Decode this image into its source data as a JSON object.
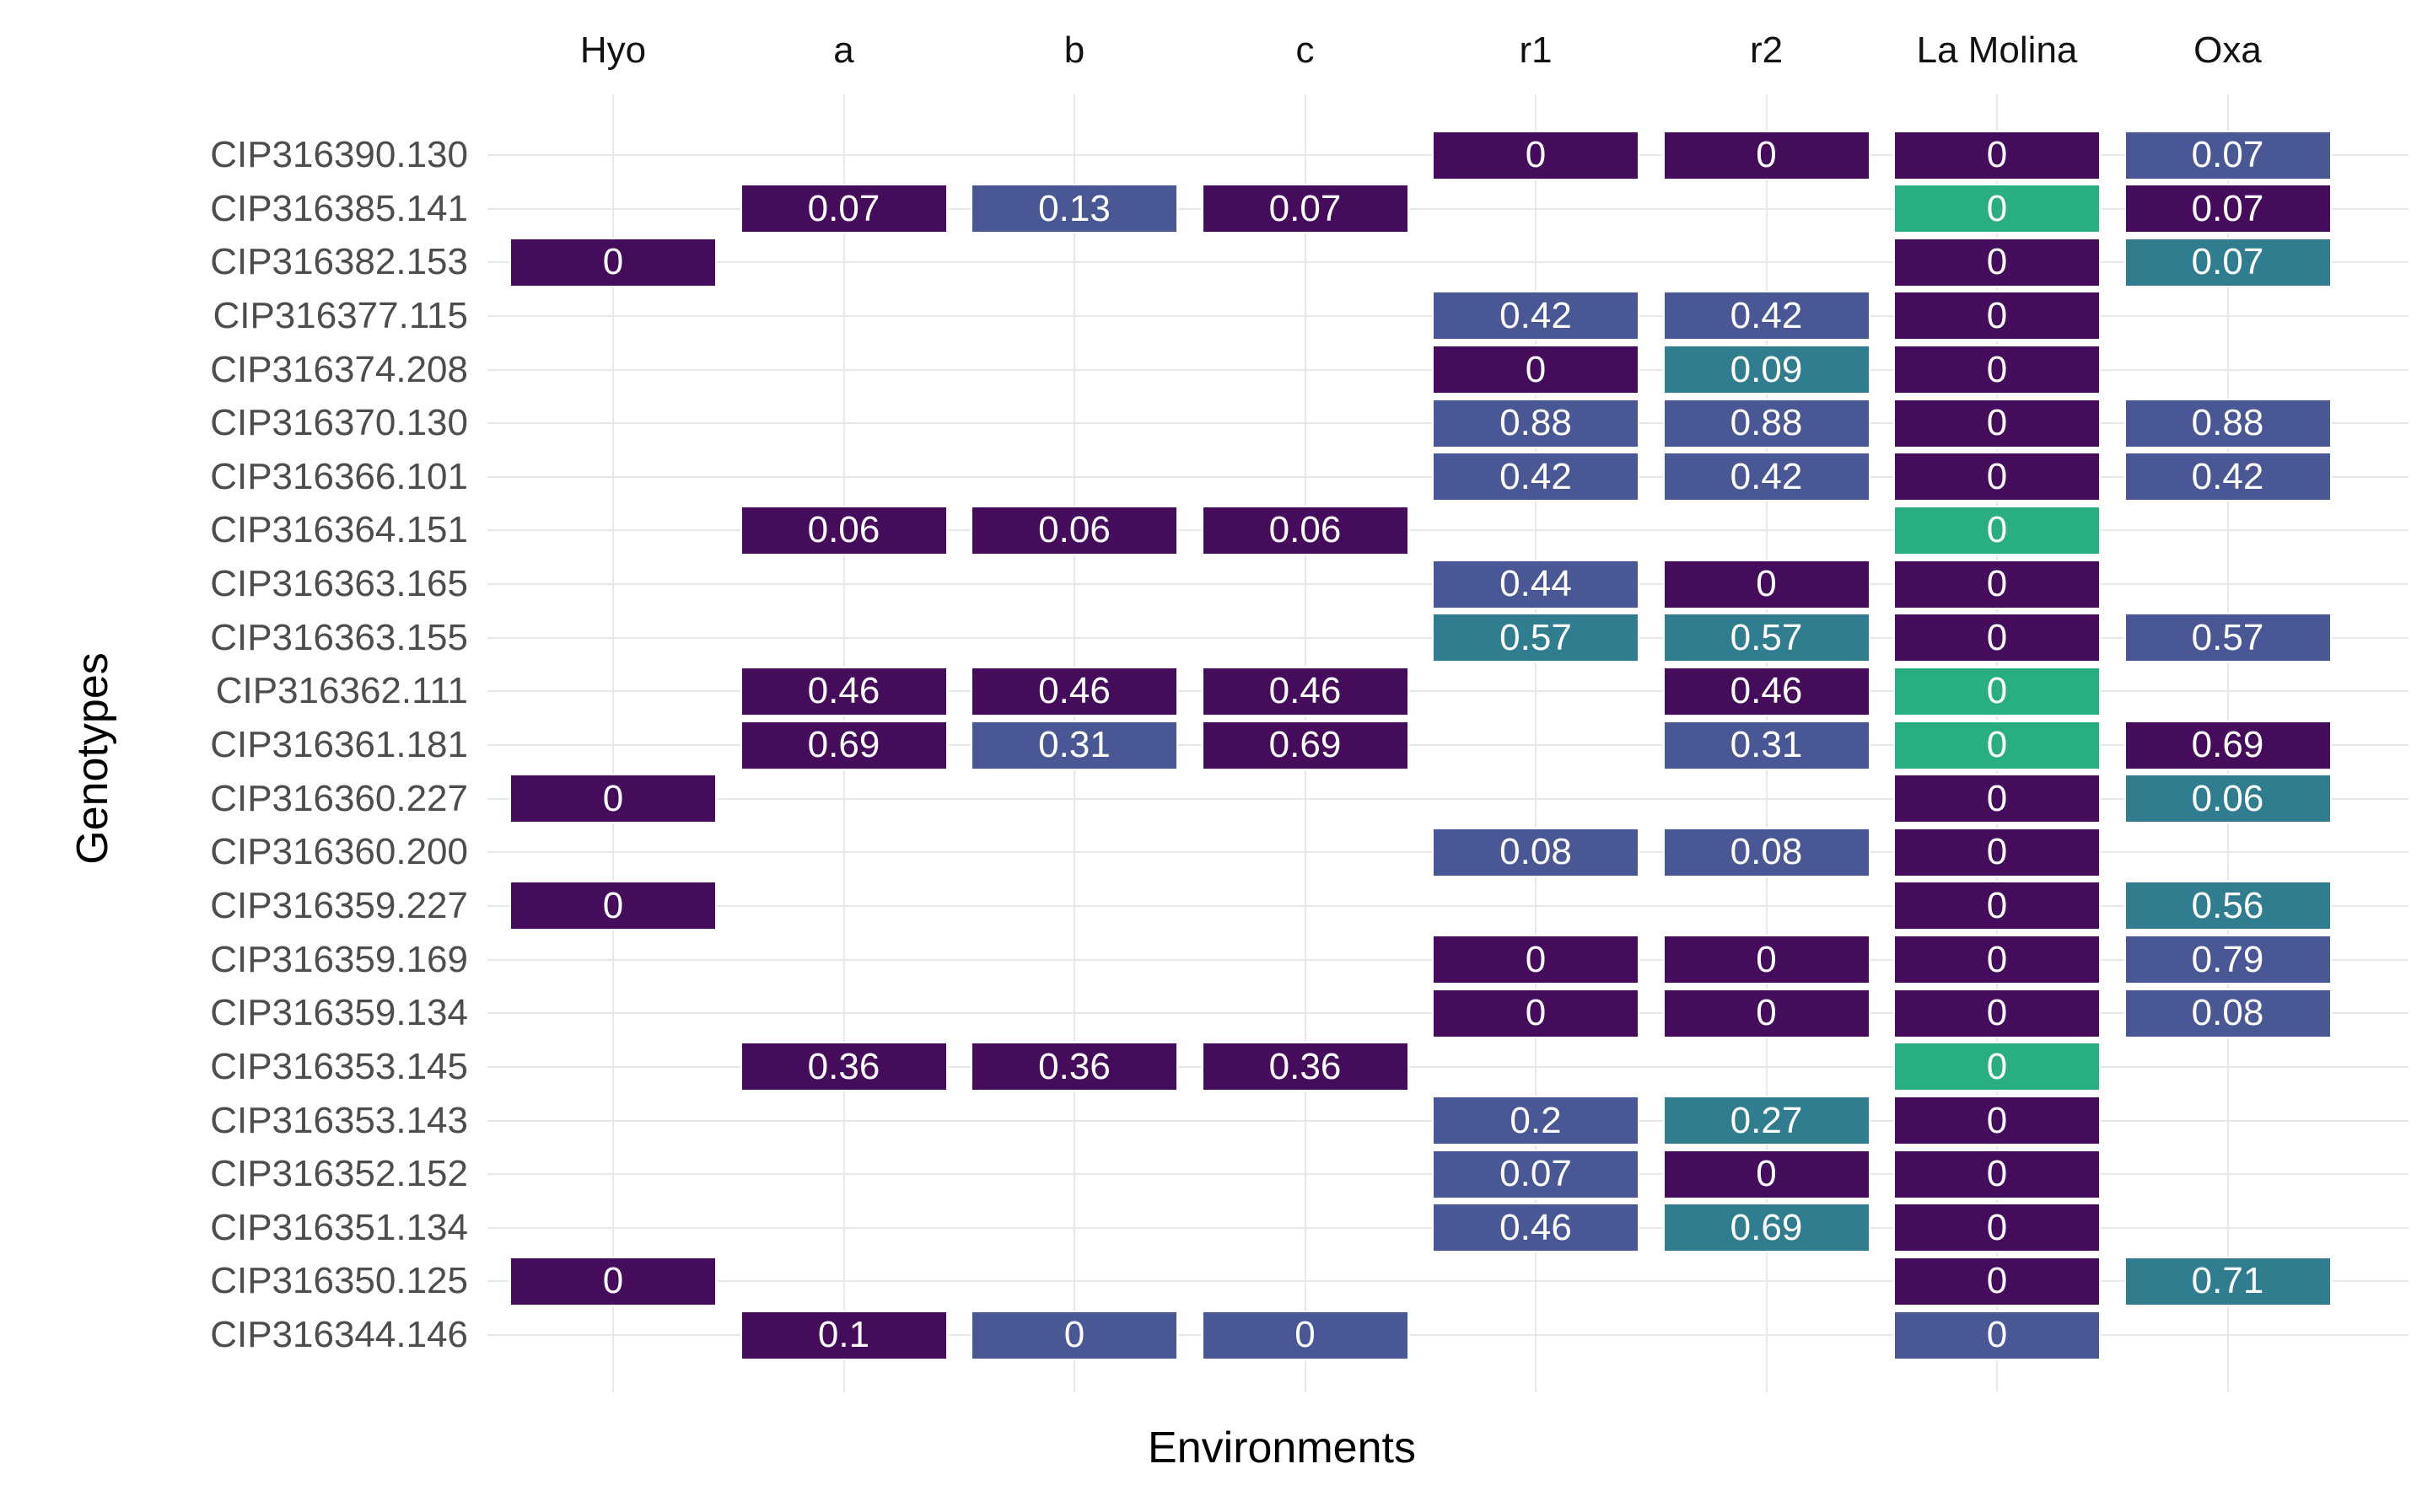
{
  "figure": {
    "xlabel": "Environments",
    "ylabel": "Genotypes"
  },
  "chart_data": {
    "type": "heatmap",
    "title": "",
    "xlabel": "Environments",
    "ylabel": "Genotypes",
    "legend": "none",
    "grid": "on",
    "x_categories": [
      "Hyo",
      "a",
      "b",
      "c",
      "r1",
      "r2",
      "La Molina",
      "Oxa"
    ],
    "y_categories": [
      "CIP316390.130",
      "CIP316385.141",
      "CIP316382.153",
      "CIP316377.115",
      "CIP316374.208",
      "CIP316370.130",
      "CIP316366.101",
      "CIP316364.151",
      "CIP316363.165",
      "CIP316363.155",
      "CIP316362.111",
      "CIP316361.181",
      "CIP316360.227",
      "CIP316360.200",
      "CIP316359.227",
      "CIP316359.169",
      "CIP316359.134",
      "CIP316353.145",
      "CIP316353.143",
      "CIP316352.152",
      "CIP316351.134",
      "CIP316350.125",
      "CIP316344.146"
    ],
    "palette": {
      "purple": "#460C5C",
      "blue": "#4A5795",
      "teal": "#2F7D8F",
      "green": "#29AE82"
    },
    "grid_color": "#E8E8E8",
    "y_tick_color": "#4D4D4D",
    "x_tick_color": "#111111",
    "cell_text_color": "#FFFFFF",
    "cells": [
      {
        "y": "CIP316390.130",
        "x": "r1",
        "v": "0",
        "c": "purple"
      },
      {
        "y": "CIP316390.130",
        "x": "r2",
        "v": "0",
        "c": "purple"
      },
      {
        "y": "CIP316390.130",
        "x": "La Molina",
        "v": "0",
        "c": "purple"
      },
      {
        "y": "CIP316390.130",
        "x": "Oxa",
        "v": "0.07",
        "c": "blue"
      },
      {
        "y": "CIP316385.141",
        "x": "a",
        "v": "0.07",
        "c": "purple"
      },
      {
        "y": "CIP316385.141",
        "x": "b",
        "v": "0.13",
        "c": "blue"
      },
      {
        "y": "CIP316385.141",
        "x": "c",
        "v": "0.07",
        "c": "purple"
      },
      {
        "y": "CIP316385.141",
        "x": "La Molina",
        "v": "0",
        "c": "green"
      },
      {
        "y": "CIP316385.141",
        "x": "Oxa",
        "v": "0.07",
        "c": "purple"
      },
      {
        "y": "CIP316382.153",
        "x": "Hyo",
        "v": "0",
        "c": "purple"
      },
      {
        "y": "CIP316382.153",
        "x": "La Molina",
        "v": "0",
        "c": "purple"
      },
      {
        "y": "CIP316382.153",
        "x": "Oxa",
        "v": "0.07",
        "c": "teal"
      },
      {
        "y": "CIP316377.115",
        "x": "r1",
        "v": "0.42",
        "c": "blue"
      },
      {
        "y": "CIP316377.115",
        "x": "r2",
        "v": "0.42",
        "c": "blue"
      },
      {
        "y": "CIP316377.115",
        "x": "La Molina",
        "v": "0",
        "c": "purple"
      },
      {
        "y": "CIP316374.208",
        "x": "r1",
        "v": "0",
        "c": "purple"
      },
      {
        "y": "CIP316374.208",
        "x": "r2",
        "v": "0.09",
        "c": "teal"
      },
      {
        "y": "CIP316374.208",
        "x": "La Molina",
        "v": "0",
        "c": "purple"
      },
      {
        "y": "CIP316370.130",
        "x": "r1",
        "v": "0.88",
        "c": "blue"
      },
      {
        "y": "CIP316370.130",
        "x": "r2",
        "v": "0.88",
        "c": "blue"
      },
      {
        "y": "CIP316370.130",
        "x": "La Molina",
        "v": "0",
        "c": "purple"
      },
      {
        "y": "CIP316370.130",
        "x": "Oxa",
        "v": "0.88",
        "c": "blue"
      },
      {
        "y": "CIP316366.101",
        "x": "r1",
        "v": "0.42",
        "c": "blue"
      },
      {
        "y": "CIP316366.101",
        "x": "r2",
        "v": "0.42",
        "c": "blue"
      },
      {
        "y": "CIP316366.101",
        "x": "La Molina",
        "v": "0",
        "c": "purple"
      },
      {
        "y": "CIP316366.101",
        "x": "Oxa",
        "v": "0.42",
        "c": "blue"
      },
      {
        "y": "CIP316364.151",
        "x": "a",
        "v": "0.06",
        "c": "purple"
      },
      {
        "y": "CIP316364.151",
        "x": "b",
        "v": "0.06",
        "c": "purple"
      },
      {
        "y": "CIP316364.151",
        "x": "c",
        "v": "0.06",
        "c": "purple"
      },
      {
        "y": "CIP316364.151",
        "x": "La Molina",
        "v": "0",
        "c": "green"
      },
      {
        "y": "CIP316363.165",
        "x": "r1",
        "v": "0.44",
        "c": "blue"
      },
      {
        "y": "CIP316363.165",
        "x": "r2",
        "v": "0",
        "c": "purple"
      },
      {
        "y": "CIP316363.165",
        "x": "La Molina",
        "v": "0",
        "c": "purple"
      },
      {
        "y": "CIP316363.155",
        "x": "r1",
        "v": "0.57",
        "c": "teal"
      },
      {
        "y": "CIP316363.155",
        "x": "r2",
        "v": "0.57",
        "c": "teal"
      },
      {
        "y": "CIP316363.155",
        "x": "La Molina",
        "v": "0",
        "c": "purple"
      },
      {
        "y": "CIP316363.155",
        "x": "Oxa",
        "v": "0.57",
        "c": "blue"
      },
      {
        "y": "CIP316362.111",
        "x": "a",
        "v": "0.46",
        "c": "purple"
      },
      {
        "y": "CIP316362.111",
        "x": "b",
        "v": "0.46",
        "c": "purple"
      },
      {
        "y": "CIP316362.111",
        "x": "c",
        "v": "0.46",
        "c": "purple"
      },
      {
        "y": "CIP316362.111",
        "x": "r2",
        "v": "0.46",
        "c": "purple"
      },
      {
        "y": "CIP316362.111",
        "x": "La Molina",
        "v": "0",
        "c": "green"
      },
      {
        "y": "CIP316361.181",
        "x": "a",
        "v": "0.69",
        "c": "purple"
      },
      {
        "y": "CIP316361.181",
        "x": "b",
        "v": "0.31",
        "c": "blue"
      },
      {
        "y": "CIP316361.181",
        "x": "c",
        "v": "0.69",
        "c": "purple"
      },
      {
        "y": "CIP316361.181",
        "x": "r2",
        "v": "0.31",
        "c": "blue"
      },
      {
        "y": "CIP316361.181",
        "x": "La Molina",
        "v": "0",
        "c": "green"
      },
      {
        "y": "CIP316361.181",
        "x": "Oxa",
        "v": "0.69",
        "c": "purple"
      },
      {
        "y": "CIP316360.227",
        "x": "Hyo",
        "v": "0",
        "c": "purple"
      },
      {
        "y": "CIP316360.227",
        "x": "La Molina",
        "v": "0",
        "c": "purple"
      },
      {
        "y": "CIP316360.227",
        "x": "Oxa",
        "v": "0.06",
        "c": "teal"
      },
      {
        "y": "CIP316360.200",
        "x": "r1",
        "v": "0.08",
        "c": "blue"
      },
      {
        "y": "CIP316360.200",
        "x": "r2",
        "v": "0.08",
        "c": "blue"
      },
      {
        "y": "CIP316360.200",
        "x": "La Molina",
        "v": "0",
        "c": "purple"
      },
      {
        "y": "CIP316359.227",
        "x": "Hyo",
        "v": "0",
        "c": "purple"
      },
      {
        "y": "CIP316359.227",
        "x": "La Molina",
        "v": "0",
        "c": "purple"
      },
      {
        "y": "CIP316359.227",
        "x": "Oxa",
        "v": "0.56",
        "c": "teal"
      },
      {
        "y": "CIP316359.169",
        "x": "r1",
        "v": "0",
        "c": "purple"
      },
      {
        "y": "CIP316359.169",
        "x": "r2",
        "v": "0",
        "c": "purple"
      },
      {
        "y": "CIP316359.169",
        "x": "La Molina",
        "v": "0",
        "c": "purple"
      },
      {
        "y": "CIP316359.169",
        "x": "Oxa",
        "v": "0.79",
        "c": "blue"
      },
      {
        "y": "CIP316359.134",
        "x": "r1",
        "v": "0",
        "c": "purple"
      },
      {
        "y": "CIP316359.134",
        "x": "r2",
        "v": "0",
        "c": "purple"
      },
      {
        "y": "CIP316359.134",
        "x": "La Molina",
        "v": "0",
        "c": "purple"
      },
      {
        "y": "CIP316359.134",
        "x": "Oxa",
        "v": "0.08",
        "c": "blue"
      },
      {
        "y": "CIP316353.145",
        "x": "a",
        "v": "0.36",
        "c": "purple"
      },
      {
        "y": "CIP316353.145",
        "x": "b",
        "v": "0.36",
        "c": "purple"
      },
      {
        "y": "CIP316353.145",
        "x": "c",
        "v": "0.36",
        "c": "purple"
      },
      {
        "y": "CIP316353.145",
        "x": "La Molina",
        "v": "0",
        "c": "green"
      },
      {
        "y": "CIP316353.143",
        "x": "r1",
        "v": "0.2",
        "c": "blue"
      },
      {
        "y": "CIP316353.143",
        "x": "r2",
        "v": "0.27",
        "c": "teal"
      },
      {
        "y": "CIP316353.143",
        "x": "La Molina",
        "v": "0",
        "c": "purple"
      },
      {
        "y": "CIP316352.152",
        "x": "r1",
        "v": "0.07",
        "c": "blue"
      },
      {
        "y": "CIP316352.152",
        "x": "r2",
        "v": "0",
        "c": "purple"
      },
      {
        "y": "CIP316352.152",
        "x": "La Molina",
        "v": "0",
        "c": "purple"
      },
      {
        "y": "CIP316351.134",
        "x": "r1",
        "v": "0.46",
        "c": "blue"
      },
      {
        "y": "CIP316351.134",
        "x": "r2",
        "v": "0.69",
        "c": "teal"
      },
      {
        "y": "CIP316351.134",
        "x": "La Molina",
        "v": "0",
        "c": "purple"
      },
      {
        "y": "CIP316350.125",
        "x": "Hyo",
        "v": "0",
        "c": "purple"
      },
      {
        "y": "CIP316350.125",
        "x": "La Molina",
        "v": "0",
        "c": "purple"
      },
      {
        "y": "CIP316350.125",
        "x": "Oxa",
        "v": "0.71",
        "c": "teal"
      },
      {
        "y": "CIP316344.146",
        "x": "a",
        "v": "0.1",
        "c": "purple"
      },
      {
        "y": "CIP316344.146",
        "x": "b",
        "v": "0",
        "c": "blue"
      },
      {
        "y": "CIP316344.146",
        "x": "c",
        "v": "0",
        "c": "blue"
      },
      {
        "y": "CIP316344.146",
        "x": "La Molina",
        "v": "0",
        "c": "blue"
      }
    ]
  }
}
